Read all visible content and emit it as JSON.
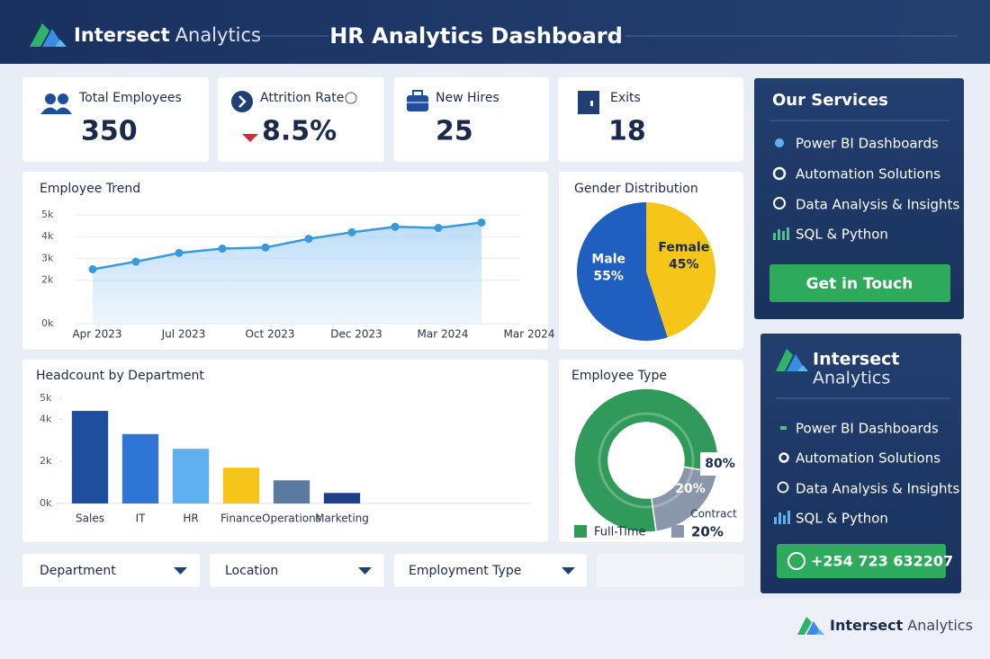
{
  "header": {
    "brand": "Intersect",
    "brand_suffix": "Analytics",
    "title": "HR Analytics Dashboard"
  },
  "kpis": [
    {
      "label": "Total Employees",
      "value": "350"
    },
    {
      "label": "Attrition Rate",
      "value": "8.5%"
    },
    {
      "label": "New Hires",
      "value": "25"
    },
    {
      "label": "Exits",
      "value": "18"
    }
  ],
  "chart_data": [
    {
      "type": "line",
      "title": "Employee Trend",
      "categories": [
        "Apr 2023",
        null,
        "Jul 2023",
        null,
        "Oct 2023",
        null,
        "Dec 2023",
        null,
        "Mar 2024",
        null,
        "Mar 2024"
      ],
      "values": [
        2500,
        2850,
        3250,
        3450,
        3500,
        3900,
        4200,
        4450,
        4400,
        4650,
        null
      ],
      "color": "#3a9ad9",
      "ylim": [
        0,
        5000
      ],
      "yticks": [
        {
          "value": 0,
          "label": "0k"
        },
        {
          "value": 2000,
          "label": "2k"
        },
        {
          "value": 3000,
          "label": "3k"
        },
        {
          "value": 4000,
          "label": "4k"
        },
        {
          "value": 5000,
          "label": "5k"
        }
      ],
      "grid": true
    },
    {
      "type": "pie",
      "title": "Gender Distribution",
      "categories": [
        "Male",
        "Female"
      ],
      "values": [
        55,
        45
      ],
      "value_labels": [
        "55%",
        "45%"
      ],
      "colors": [
        "#1f5fbf",
        "#f5c518"
      ]
    },
    {
      "type": "bar",
      "title": "Headcount by Department",
      "categories": [
        "Sales",
        "IT",
        "HR",
        "Finance",
        "Operations",
        "Marketing"
      ],
      "values": [
        4400,
        3300,
        2600,
        1700,
        1100,
        500
      ],
      "colors": [
        "#1f4e9c",
        "#2e75d6",
        "#5fb0ee",
        "#f5c518",
        "#5a7aa0",
        "#1f3f8c"
      ],
      "ylim": [
        0,
        5000
      ],
      "yticks": [
        {
          "value": 0,
          "label": "0k"
        },
        {
          "value": 2000,
          "label": "2k"
        },
        {
          "value": 4000,
          "label": "4k"
        },
        {
          "value": 5000,
          "label": "5k"
        }
      ]
    },
    {
      "type": "donut",
      "title": "Employee Type",
      "categories": [
        "Full-Time",
        "Contract"
      ],
      "values": [
        80,
        20
      ],
      "value_labels": [
        "80%",
        "20%"
      ],
      "colors": [
        "#2f9a5a",
        "#8a96aa"
      ]
    }
  ],
  "filters": [
    "Department",
    "Location",
    "Employment Type"
  ],
  "services": {
    "title": "Our Services",
    "items": [
      "Power BI Dashboards",
      "Automation Solutions",
      "Data Analysis & Insights",
      "SQL & Python"
    ],
    "button": "Get in Touch"
  },
  "contact": {
    "brand": "Intersect",
    "brand_suffix": "Analytics",
    "items": [
      "Power BI Dashboards",
      "Automation Solutions",
      "Data Analysis & Insights",
      "SQL & Python"
    ],
    "button": "+254 723 632207"
  },
  "footer": {
    "brand": "Intersect",
    "brand_suffix": "Analytics"
  }
}
